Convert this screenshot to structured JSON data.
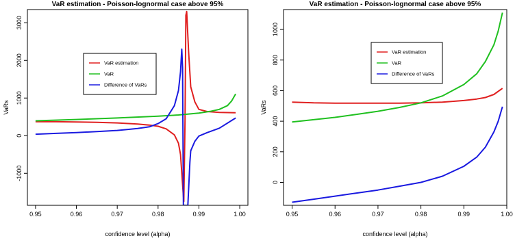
{
  "chart_data": [
    {
      "type": "line",
      "title": "VaR estimation - Poisson-lognormal case above 95%",
      "xlabel": "confidence level (alpha)",
      "ylabel": "VaRs",
      "xlim": [
        0.948,
        1.002
      ],
      "ylim": [
        -1850,
        3350
      ],
      "xticks": [
        0.95,
        0.96,
        0.97,
        0.98,
        0.99,
        1.0
      ],
      "xtick_labels": [
        "0.95",
        "0.96",
        "0.97",
        "0.98",
        "0.99",
        "1.00"
      ],
      "yticks": [
        -1000,
        0,
        1000,
        2000,
        3000
      ],
      "ytick_labels": [
        "-1000",
        "0",
        "1000",
        "2000",
        "3000"
      ],
      "grid": false,
      "legend_position": "top-left",
      "series": [
        {
          "name": "VaR estimation",
          "color": "#e02020",
          "x": [
            0.95,
            0.955,
            0.96,
            0.965,
            0.97,
            0.975,
            0.978,
            0.98,
            0.982,
            0.984,
            0.985,
            0.9855,
            0.986,
            0.9863,
            0.9866,
            0.9868,
            0.987,
            0.9875,
            0.988,
            0.989,
            0.99,
            0.992,
            0.995,
            0.999
          ],
          "y": [
            370,
            370,
            365,
            355,
            340,
            310,
            280,
            250,
            180,
            20,
            -200,
            -500,
            -1300,
            -1750,
            400,
            3200,
            3300,
            2200,
            1300,
            900,
            700,
            640,
            620,
            610
          ]
        },
        {
          "name": "VaR",
          "color": "#20c020",
          "x": [
            0.95,
            0.96,
            0.97,
            0.98,
            0.985,
            0.99,
            0.993,
            0.995,
            0.997,
            0.998,
            0.999
          ],
          "y": [
            395,
            430,
            470,
            520,
            550,
            600,
            650,
            700,
            800,
            920,
            1110
          ]
        },
        {
          "name": "Difference of VaRs",
          "color": "#1a1ae0",
          "x": [
            0.95,
            0.955,
            0.96,
            0.965,
            0.97,
            0.975,
            0.978,
            0.98,
            0.982,
            0.984,
            0.985,
            0.9855,
            0.9858,
            0.986,
            0.9862,
            0.9866,
            0.987,
            0.9873,
            0.9878,
            0.988,
            0.989,
            0.99,
            0.992,
            0.995,
            0.999
          ],
          "y": [
            40,
            60,
            80,
            110,
            140,
            190,
            240,
            320,
            450,
            800,
            1200,
            1700,
            2300,
            1800,
            -1850,
            -1850,
            -1850,
            -1850,
            -700,
            -400,
            -150,
            -10,
            80,
            200,
            470
          ]
        }
      ]
    },
    {
      "type": "line",
      "title": "VaR estimation - Poisson-lognormal case above 95%",
      "xlabel": "confidence level (alpha)",
      "ylabel": "VaRs",
      "xlim": [
        0.948,
        1.0
      ],
      "ylim": [
        -150,
        1130
      ],
      "xticks": [
        0.95,
        0.96,
        0.97,
        0.98,
        0.99,
        1.0
      ],
      "xtick_labels": [
        "0.95",
        "0.96",
        "0.97",
        "0.98",
        "0.99",
        "1.00"
      ],
      "yticks": [
        0,
        200,
        400,
        600,
        800,
        1000
      ],
      "ytick_labels": [
        "0",
        "200",
        "400",
        "600",
        "800",
        "1000"
      ],
      "grid": false,
      "legend_position": "top-left",
      "series": [
        {
          "name": "VaR estimation",
          "color": "#e02020",
          "x": [
            0.95,
            0.955,
            0.96,
            0.965,
            0.97,
            0.975,
            0.98,
            0.985,
            0.99,
            0.993,
            0.995,
            0.997,
            0.998,
            0.999
          ],
          "y": [
            525,
            520,
            518,
            518,
            518,
            518,
            520,
            525,
            535,
            545,
            555,
            575,
            595,
            615
          ]
        },
        {
          "name": "VaR",
          "color": "#20c020",
          "x": [
            0.95,
            0.955,
            0.96,
            0.965,
            0.97,
            0.975,
            0.98,
            0.985,
            0.99,
            0.993,
            0.995,
            0.997,
            0.998,
            0.999
          ],
          "y": [
            395,
            410,
            425,
            445,
            465,
            490,
            520,
            565,
            640,
            710,
            790,
            900,
            990,
            1110
          ]
        },
        {
          "name": "Difference of VaRs",
          "color": "#1a1ae0",
          "x": [
            0.95,
            0.955,
            0.96,
            0.965,
            0.97,
            0.975,
            0.98,
            0.985,
            0.99,
            0.993,
            0.995,
            0.997,
            0.998,
            0.999
          ],
          "y": [
            -130,
            -110,
            -90,
            -70,
            -50,
            -25,
            0,
            40,
            105,
            165,
            230,
            330,
            400,
            495
          ]
        }
      ]
    }
  ]
}
